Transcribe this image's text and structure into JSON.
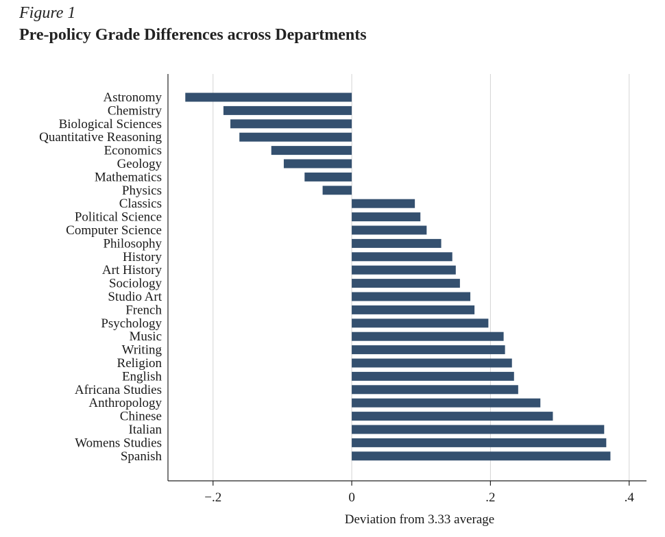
{
  "figure_label": "Figure 1",
  "title": "Pre-policy Grade Differences across Departments",
  "chart_data": {
    "type": "bar",
    "orientation": "horizontal",
    "title": "Pre-policy Grade Differences across Departments",
    "xlabel": "Deviation from 3.33 average",
    "ylabel": "",
    "xlim": [
      -0.265,
      0.425
    ],
    "xticks": [
      -0.2,
      0,
      0.2,
      0.4
    ],
    "xtick_labels": [
      "−.2",
      "0",
      ".2",
      ".4"
    ],
    "grid": "vertical gridlines at ticks",
    "bar_color": "#34506f",
    "categories": [
      "Astronomy",
      "Chemistry",
      "Biological Sciences",
      "Quantitative Reasoning",
      "Economics",
      "Geology",
      "Mathematics",
      "Physics",
      "Classics",
      "Political Science",
      "Computer Science",
      "Philosophy",
      "History",
      "Art History",
      "Sociology",
      "Studio Art",
      "French",
      "Psychology",
      "Music",
      "Writing",
      "Religion",
      "English",
      "Africana Studies",
      "Anthropology",
      "Chinese",
      "Italian",
      "Womens Studies",
      "Spanish"
    ],
    "values": [
      -0.24,
      -0.185,
      -0.175,
      -0.162,
      -0.116,
      -0.098,
      -0.068,
      -0.042,
      0.091,
      0.099,
      0.108,
      0.129,
      0.145,
      0.15,
      0.156,
      0.171,
      0.177,
      0.197,
      0.219,
      0.221,
      0.231,
      0.234,
      0.24,
      0.272,
      0.29,
      0.364,
      0.367,
      0.373
    ]
  }
}
